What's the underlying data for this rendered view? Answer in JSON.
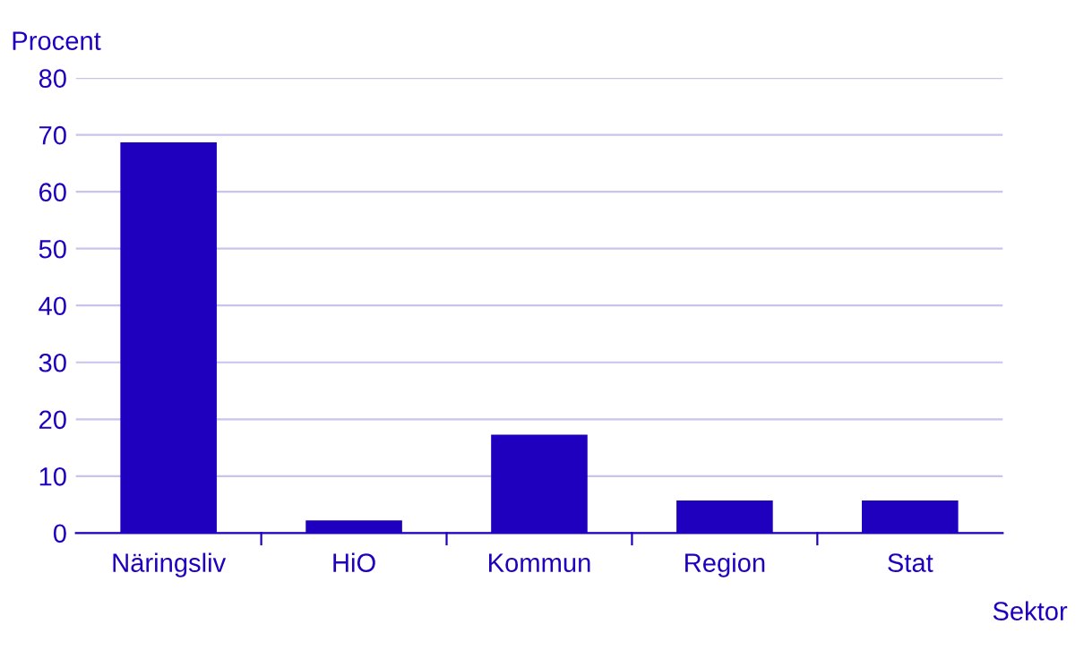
{
  "chart_data": {
    "type": "bar",
    "ylabel": "Procent",
    "xlabel": "Sektor",
    "categories": [
      "Näringsliv",
      "HiO",
      "Kommun",
      "Region",
      "Stat"
    ],
    "values": [
      68.7,
      2.2,
      17.3,
      5.7,
      5.7
    ],
    "color": "#1e00be",
    "ylim": [
      0,
      80
    ],
    "yticks": [
      0,
      10,
      20,
      30,
      40,
      50,
      60,
      70,
      80
    ],
    "grid": "y"
  }
}
